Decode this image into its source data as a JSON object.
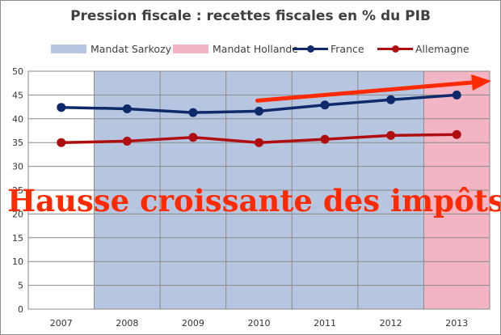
{
  "chart_data": {
    "type": "line",
    "title": "Pression fiscale : recettes fiscales en % du PIB",
    "categories": [
      "2007",
      "2008",
      "2009",
      "2010",
      "2011",
      "2012",
      "2013"
    ],
    "ylim": [
      0,
      50
    ],
    "yticks": [
      "0",
      "5",
      "10",
      "15",
      "20",
      "25",
      "30",
      "35",
      "40",
      "45",
      "50"
    ],
    "grid": true,
    "legend_position": "top",
    "series": [
      {
        "name": "France",
        "values": [
          42.4,
          42.1,
          41.3,
          41.6,
          42.9,
          44.0,
          45.0
        ],
        "color": "#0f2a6b"
      },
      {
        "name": "Allemagne",
        "values": [
          35.0,
          35.3,
          36.1,
          35.0,
          35.7,
          36.5,
          36.7
        ],
        "color": "#b00f12"
      }
    ],
    "shaded_periods": [
      {
        "name": "Mandat Sarkozy",
        "from": "2008",
        "to": "2012",
        "color": "#b7c6e0"
      },
      {
        "name": "Mandat Hollande",
        "from": "2013",
        "to": "2013",
        "color": "#f3b4c4"
      }
    ],
    "annotations": [
      {
        "text": "Hausse croissante des impôts!",
        "color": "#ff2a00"
      }
    ],
    "trend_arrow": {
      "color": "#ff2a00",
      "from_category": "2010",
      "direction": "up"
    }
  }
}
